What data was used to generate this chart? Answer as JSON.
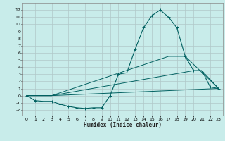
{
  "xlabel": "Humidex (Indice chaleur)",
  "xlim": [
    -0.5,
    23.5
  ],
  "ylim": [
    -2.8,
    13.0
  ],
  "yticks": [
    -2,
    -1,
    0,
    1,
    2,
    3,
    4,
    5,
    6,
    7,
    8,
    9,
    10,
    11,
    12
  ],
  "xticks": [
    0,
    1,
    2,
    3,
    4,
    5,
    6,
    7,
    8,
    9,
    10,
    11,
    12,
    13,
    14,
    15,
    16,
    17,
    18,
    19,
    20,
    21,
    22,
    23
  ],
  "bg_color": "#c8ecea",
  "grid_color": "#b0c8c8",
  "line_color": "#006060",
  "curve1_x": [
    0,
    1,
    2,
    3,
    4,
    5,
    6,
    7,
    8,
    9,
    10,
    11,
    12,
    13,
    14,
    15,
    16,
    17,
    18,
    19,
    20,
    21,
    22,
    23
  ],
  "curve1_y": [
    0,
    -0.7,
    -0.8,
    -0.8,
    -1.2,
    -1.5,
    -1.7,
    -1.8,
    -1.7,
    -1.7,
    0.0,
    3.0,
    3.2,
    6.5,
    9.5,
    11.2,
    12.0,
    11.0,
    9.5,
    5.5,
    3.5,
    3.5,
    1.2,
    1.0
  ],
  "curve2_x": [
    0,
    3,
    23
  ],
  "curve2_y": [
    0,
    0,
    1.0
  ],
  "curve3_x": [
    0,
    3,
    20,
    21,
    23
  ],
  "curve3_y": [
    0,
    0,
    3.5,
    3.5,
    1.0
  ],
  "curve4_x": [
    0,
    3,
    17,
    19,
    23
  ],
  "curve4_y": [
    0,
    0,
    5.5,
    5.5,
    1.0
  ]
}
